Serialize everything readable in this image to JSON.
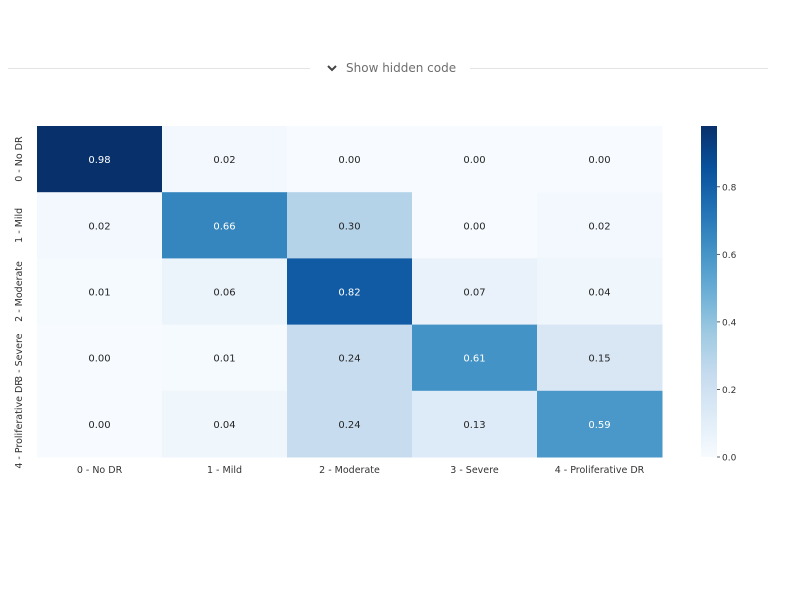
{
  "code_toggle": {
    "label": "Show hidden code",
    "icon": "chevron-down-icon"
  },
  "chart_data": {
    "type": "heatmap",
    "title": "",
    "xlabel": "",
    "ylabel": "",
    "x_categories": [
      "0 - No DR",
      "1 - Mild",
      "2 - Moderate",
      "3 - Severe",
      "4 - Proliferative DR"
    ],
    "y_categories": [
      "0 - No DR",
      "1 - Mild",
      "2 - Moderate",
      "3 - Severe",
      "4 - Proliferative DR"
    ],
    "values": [
      [
        0.98,
        0.02,
        0.0,
        0.0,
        0.0
      ],
      [
        0.02,
        0.66,
        0.3,
        0.0,
        0.02
      ],
      [
        0.01,
        0.06,
        0.82,
        0.07,
        0.04
      ],
      [
        0.0,
        0.01,
        0.24,
        0.61,
        0.15
      ],
      [
        0.0,
        0.04,
        0.24,
        0.13,
        0.59
      ]
    ],
    "value_format": "0.00",
    "colormap": "Blues",
    "colorbar": {
      "range": [
        0.0,
        0.98
      ],
      "ticks": [
        0.0,
        0.2,
        0.4,
        0.6,
        0.8
      ],
      "tick_labels": [
        "0.0",
        "0.2",
        "0.4",
        "0.6",
        "0.8"
      ]
    },
    "grid": false,
    "legend": "colorbar-right"
  }
}
